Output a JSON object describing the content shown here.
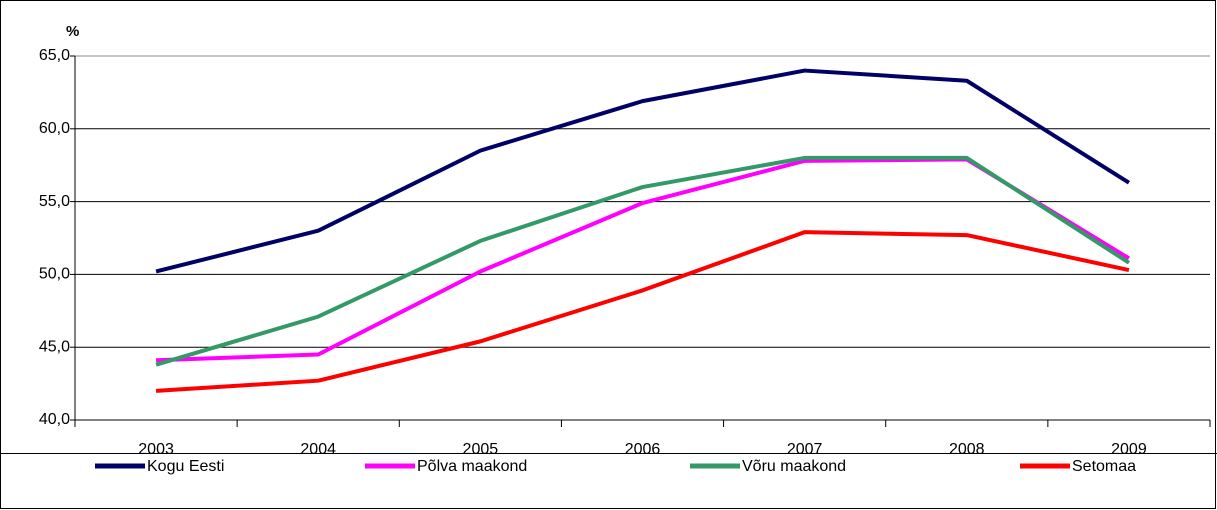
{
  "chart_data": {
    "type": "line",
    "y_label": "%",
    "categories": [
      "2003",
      "2004",
      "2005",
      "2006",
      "2007",
      "2008",
      "2009"
    ],
    "series": [
      {
        "name": "Kogu Eesti",
        "color": "#000066",
        "values": [
          50.2,
          53.0,
          58.5,
          61.9,
          64.0,
          63.3,
          56.3
        ]
      },
      {
        "name": "Põlva maakond",
        "color": "#ff00ff",
        "values": [
          44.1,
          44.5,
          50.2,
          54.9,
          57.8,
          57.9,
          51.1
        ]
      },
      {
        "name": "Võru maakond",
        "color": "#339966",
        "values": [
          43.8,
          47.1,
          52.3,
          56.0,
          58.0,
          58.0,
          50.8
        ]
      },
      {
        "name": "Setomaa",
        "color": "#ff0000",
        "values": [
          42.0,
          42.7,
          45.4,
          48.9,
          52.9,
          52.7,
          50.3
        ]
      }
    ],
    "ylim": [
      40,
      65
    ],
    "yticks": [
      {
        "value": 40,
        "label": "40,0"
      },
      {
        "value": 45,
        "label": "45,0"
      },
      {
        "value": 50,
        "label": "50,0"
      },
      {
        "value": 55,
        "label": "55,0"
      },
      {
        "value": 60,
        "label": "60,0"
      },
      {
        "value": 65,
        "label": "65,0"
      }
    ],
    "grid": true,
    "legend": "bottom"
  }
}
